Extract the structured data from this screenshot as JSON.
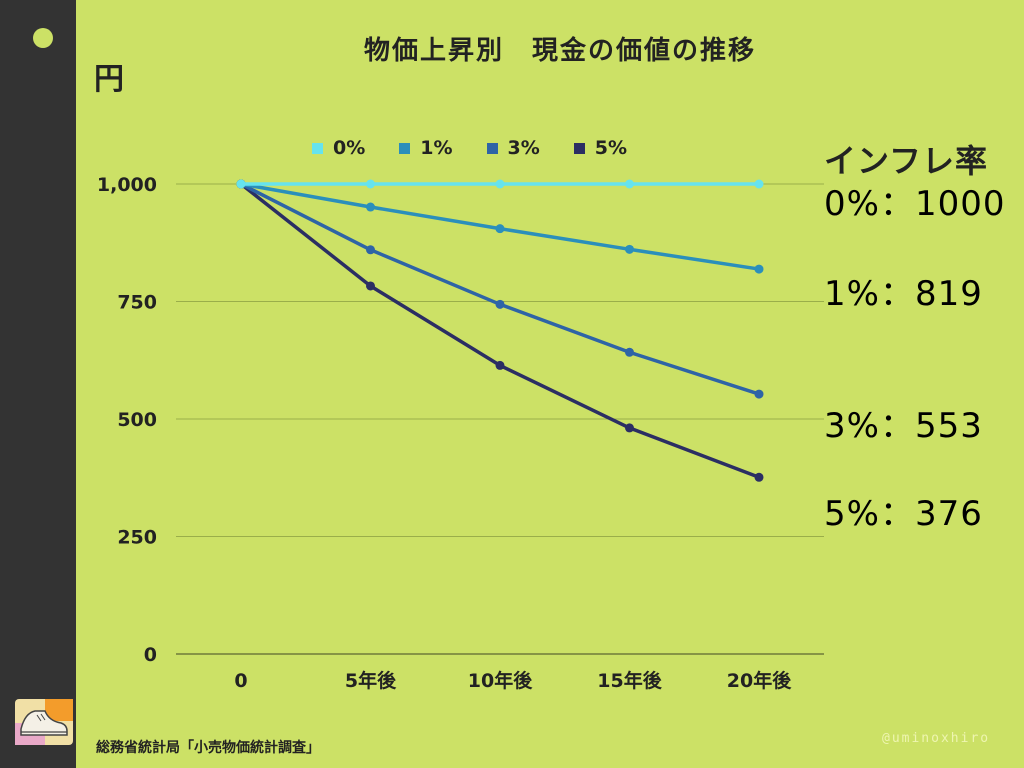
{
  "page": {
    "title": "物価上昇別　現金の価値の推移",
    "y_unit": "円",
    "source": "総務省統計局「小売物価統計調査」",
    "credit": "@uminoxhiro",
    "logo_icon": "sneaker-icon"
  },
  "side_panel": {
    "title": "インフレ率",
    "rows": [
      "0%：1000",
      "1%：819",
      "3%：553",
      "5%：376"
    ]
  },
  "chart_data": {
    "type": "line",
    "title": "物価上昇別　現金の価値の推移",
    "ylabel": "円",
    "xlabel": "",
    "categories": [
      "0",
      "5年後",
      "10年後",
      "15年後",
      "20年後"
    ],
    "y_ticks": [
      "0",
      "250",
      "500",
      "750",
      "1,000"
    ],
    "ylim": [
      0,
      1000
    ],
    "grid": true,
    "legend_position": "top",
    "series": [
      {
        "name": "0%",
        "color": "#66e3ee",
        "values": [
          1000,
          1000,
          1000,
          1000,
          1000
        ]
      },
      {
        "name": "1%",
        "color": "#2b8fbb",
        "values": [
          1000,
          951,
          905,
          861,
          819
        ]
      },
      {
        "name": "3%",
        "color": "#2e64a6",
        "values": [
          1000,
          860,
          744,
          642,
          553
        ]
      },
      {
        "name": "5%",
        "color": "#2b2e63",
        "values": [
          1000,
          783,
          614,
          481,
          376
        ]
      }
    ]
  }
}
